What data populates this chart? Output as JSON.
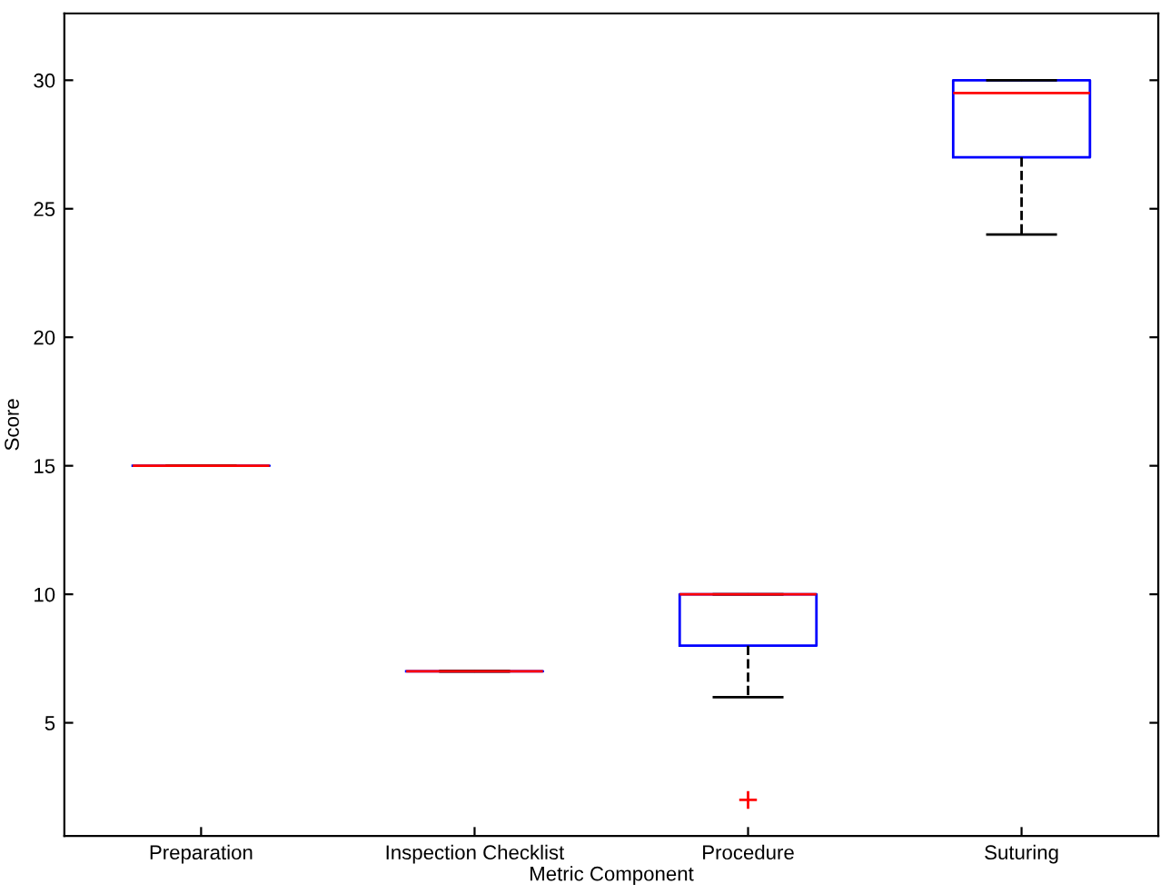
{
  "chart_data": {
    "type": "box",
    "xlabel": "Metric Component",
    "ylabel": "Score",
    "categories": [
      "Preparation",
      "Inspection Checklist",
      "Procedure",
      "Suturing"
    ],
    "boxes": [
      {
        "low": 15,
        "q1": 15,
        "median": 15,
        "q3": 15,
        "high": 15
      },
      {
        "low": 7,
        "q1": 7,
        "median": 7,
        "q3": 7,
        "high": 7
      },
      {
        "low": 6,
        "q1": 8,
        "median": 10,
        "q3": 10,
        "high": 10,
        "outliers": [
          2
        ]
      },
      {
        "low": 24,
        "q1": 27,
        "median": 29.5,
        "q3": 30,
        "high": 30
      }
    ],
    "color": "#0000ff",
    "ylim": [
      0.6,
      32.6
    ],
    "yticks": [
      5,
      10,
      15,
      20,
      25,
      30
    ],
    "grid": false,
    "line_style": "dashed"
  }
}
